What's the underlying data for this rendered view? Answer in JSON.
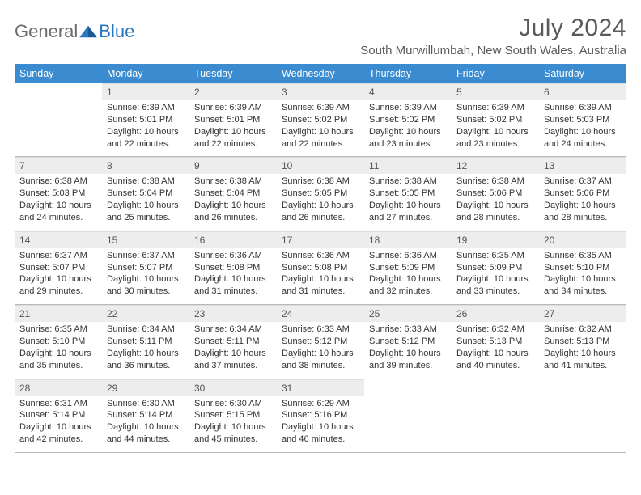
{
  "logo": {
    "word1": "General",
    "word2": "Blue"
  },
  "title": "July 2024",
  "location": "South Murwillumbah, New South Wales, Australia",
  "colors": {
    "header_bg": "#3b8bd0",
    "header_text": "#ffffff",
    "daynum_bg": "#ededed",
    "daynum_text": "#555555",
    "body_text": "#333333",
    "rule": "#b8b8b8",
    "logo_gray": "#6a6a6a",
    "logo_blue": "#2977bc",
    "title_color": "#5a5a5a",
    "page_bg": "#ffffff"
  },
  "typography": {
    "title_fontsize": 30,
    "location_fontsize": 15,
    "header_fontsize": 12.5,
    "daynum_fontsize": 12,
    "body_fontsize": 11,
    "font_family": "Arial"
  },
  "layout": {
    "columns": 7,
    "rows": 5,
    "cell_min_height": 58
  },
  "weekdays": [
    "Sunday",
    "Monday",
    "Tuesday",
    "Wednesday",
    "Thursday",
    "Friday",
    "Saturday"
  ],
  "weeks": [
    [
      null,
      {
        "n": "1",
        "sunrise": "6:39 AM",
        "sunset": "5:01 PM",
        "daylight": "10 hours and 22 minutes."
      },
      {
        "n": "2",
        "sunrise": "6:39 AM",
        "sunset": "5:01 PM",
        "daylight": "10 hours and 22 minutes."
      },
      {
        "n": "3",
        "sunrise": "6:39 AM",
        "sunset": "5:02 PM",
        "daylight": "10 hours and 22 minutes."
      },
      {
        "n": "4",
        "sunrise": "6:39 AM",
        "sunset": "5:02 PM",
        "daylight": "10 hours and 23 minutes."
      },
      {
        "n": "5",
        "sunrise": "6:39 AM",
        "sunset": "5:02 PM",
        "daylight": "10 hours and 23 minutes."
      },
      {
        "n": "6",
        "sunrise": "6:39 AM",
        "sunset": "5:03 PM",
        "daylight": "10 hours and 24 minutes."
      }
    ],
    [
      {
        "n": "7",
        "sunrise": "6:38 AM",
        "sunset": "5:03 PM",
        "daylight": "10 hours and 24 minutes."
      },
      {
        "n": "8",
        "sunrise": "6:38 AM",
        "sunset": "5:04 PM",
        "daylight": "10 hours and 25 minutes."
      },
      {
        "n": "9",
        "sunrise": "6:38 AM",
        "sunset": "5:04 PM",
        "daylight": "10 hours and 26 minutes."
      },
      {
        "n": "10",
        "sunrise": "6:38 AM",
        "sunset": "5:05 PM",
        "daylight": "10 hours and 26 minutes."
      },
      {
        "n": "11",
        "sunrise": "6:38 AM",
        "sunset": "5:05 PM",
        "daylight": "10 hours and 27 minutes."
      },
      {
        "n": "12",
        "sunrise": "6:38 AM",
        "sunset": "5:06 PM",
        "daylight": "10 hours and 28 minutes."
      },
      {
        "n": "13",
        "sunrise": "6:37 AM",
        "sunset": "5:06 PM",
        "daylight": "10 hours and 28 minutes."
      }
    ],
    [
      {
        "n": "14",
        "sunrise": "6:37 AM",
        "sunset": "5:07 PM",
        "daylight": "10 hours and 29 minutes."
      },
      {
        "n": "15",
        "sunrise": "6:37 AM",
        "sunset": "5:07 PM",
        "daylight": "10 hours and 30 minutes."
      },
      {
        "n": "16",
        "sunrise": "6:36 AM",
        "sunset": "5:08 PM",
        "daylight": "10 hours and 31 minutes."
      },
      {
        "n": "17",
        "sunrise": "6:36 AM",
        "sunset": "5:08 PM",
        "daylight": "10 hours and 31 minutes."
      },
      {
        "n": "18",
        "sunrise": "6:36 AM",
        "sunset": "5:09 PM",
        "daylight": "10 hours and 32 minutes."
      },
      {
        "n": "19",
        "sunrise": "6:35 AM",
        "sunset": "5:09 PM",
        "daylight": "10 hours and 33 minutes."
      },
      {
        "n": "20",
        "sunrise": "6:35 AM",
        "sunset": "5:10 PM",
        "daylight": "10 hours and 34 minutes."
      }
    ],
    [
      {
        "n": "21",
        "sunrise": "6:35 AM",
        "sunset": "5:10 PM",
        "daylight": "10 hours and 35 minutes."
      },
      {
        "n": "22",
        "sunrise": "6:34 AM",
        "sunset": "5:11 PM",
        "daylight": "10 hours and 36 minutes."
      },
      {
        "n": "23",
        "sunrise": "6:34 AM",
        "sunset": "5:11 PM",
        "daylight": "10 hours and 37 minutes."
      },
      {
        "n": "24",
        "sunrise": "6:33 AM",
        "sunset": "5:12 PM",
        "daylight": "10 hours and 38 minutes."
      },
      {
        "n": "25",
        "sunrise": "6:33 AM",
        "sunset": "5:12 PM",
        "daylight": "10 hours and 39 minutes."
      },
      {
        "n": "26",
        "sunrise": "6:32 AM",
        "sunset": "5:13 PM",
        "daylight": "10 hours and 40 minutes."
      },
      {
        "n": "27",
        "sunrise": "6:32 AM",
        "sunset": "5:13 PM",
        "daylight": "10 hours and 41 minutes."
      }
    ],
    [
      {
        "n": "28",
        "sunrise": "6:31 AM",
        "sunset": "5:14 PM",
        "daylight": "10 hours and 42 minutes."
      },
      {
        "n": "29",
        "sunrise": "6:30 AM",
        "sunset": "5:14 PM",
        "daylight": "10 hours and 44 minutes."
      },
      {
        "n": "30",
        "sunrise": "6:30 AM",
        "sunset": "5:15 PM",
        "daylight": "10 hours and 45 minutes."
      },
      {
        "n": "31",
        "sunrise": "6:29 AM",
        "sunset": "5:16 PM",
        "daylight": "10 hours and 46 minutes."
      },
      null,
      null,
      null
    ]
  ],
  "labels": {
    "sunrise": "Sunrise:",
    "sunset": "Sunset:",
    "daylight": "Daylight:"
  }
}
